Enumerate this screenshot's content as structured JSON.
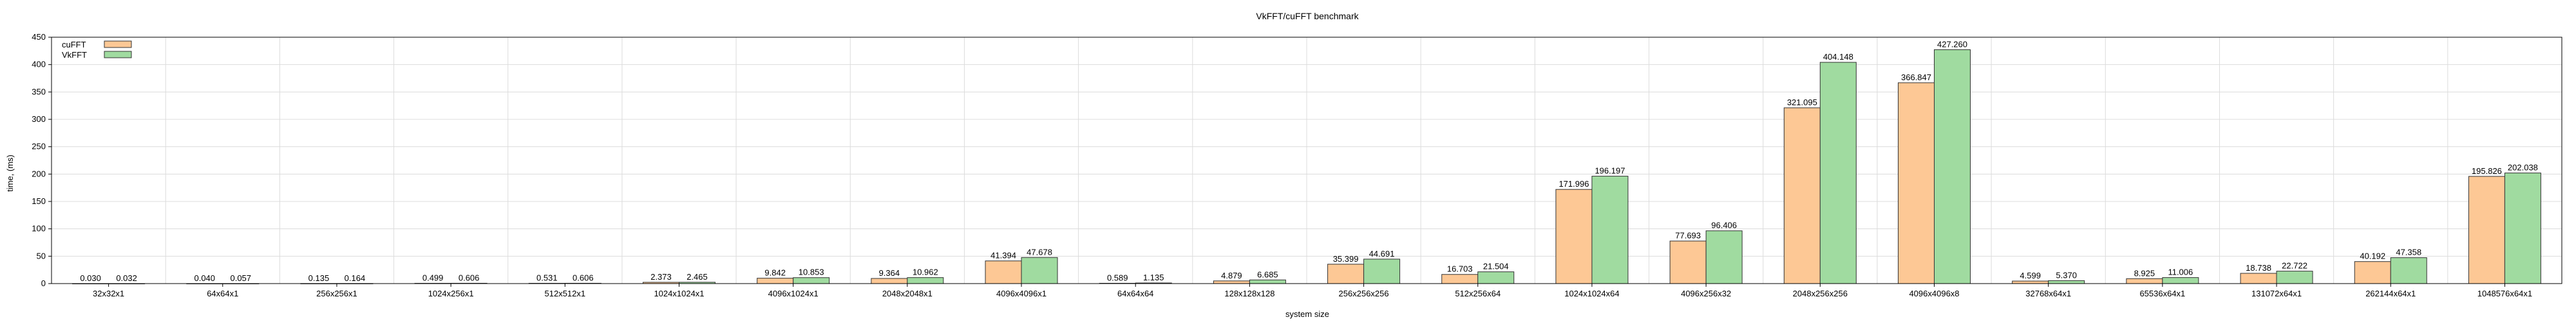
{
  "chart_data": {
    "type": "bar",
    "title": "VkFFT/cuFFT benchmark",
    "xlabel": "system size",
    "ylabel": "time, (ms)",
    "ylim": [
      0,
      450
    ],
    "yticks": [
      0,
      50,
      100,
      150,
      200,
      250,
      300,
      350,
      400,
      450
    ],
    "grid": true,
    "legend": "top-left",
    "categories": [
      "32x32x1",
      "64x64x1",
      "256x256x1",
      "1024x256x1",
      "512x512x1",
      "1024x1024x1",
      "4096x1024x1",
      "2048x2048x1",
      "4096x4096x1",
      "64x64x64",
      "128x128x128",
      "256x256x256",
      "512x256x64",
      "1024x1024x64",
      "4096x256x32",
      "2048x256x256",
      "4096x4096x8",
      "32768x64x1",
      "65536x64x1",
      "131072x64x1",
      "262144x64x1",
      "1048576x64x1"
    ],
    "series": [
      {
        "name": "cuFFT",
        "color": "#fdc895",
        "values": [
          0.03,
          0.04,
          0.135,
          0.499,
          0.531,
          2.373,
          9.842,
          9.364,
          41.394,
          0.589,
          4.879,
          35.399,
          16.703,
          171.996,
          77.693,
          321.095,
          366.847,
          4.599,
          8.925,
          18.738,
          40.192,
          195.826
        ],
        "labels": [
          "0.030",
          "0.040",
          "0.135",
          "0.499",
          "0.531",
          "2.373",
          "9.842",
          "9.364",
          "41.394",
          "0.589",
          "4.879",
          "35.399",
          "16.703",
          "171.996",
          "77.693",
          "321.095",
          "366.847",
          "4.599",
          "8.925",
          "18.738",
          "40.192",
          "195.826"
        ]
      },
      {
        "name": "VkFFT",
        "color": "#a0dba0",
        "values": [
          0.032,
          0.057,
          0.164,
          0.606,
          0.606,
          2.465,
          10.853,
          10.962,
          47.678,
          1.135,
          6.685,
          44.691,
          21.504,
          196.197,
          96.406,
          404.148,
          427.26,
          5.37,
          11.006,
          22.722,
          47.358,
          202.038
        ],
        "labels": [
          "0.032",
          "0.057",
          "0.164",
          "0.606",
          "0.606",
          "2.465",
          "10.853",
          "10.962",
          "47.678",
          "1.135",
          "6.685",
          "44.691",
          "21.504",
          "196.197",
          "96.406",
          "404.148",
          "427.260",
          "5.370",
          "11.006",
          "22.722",
          "47.358",
          "202.038"
        ]
      }
    ]
  }
}
